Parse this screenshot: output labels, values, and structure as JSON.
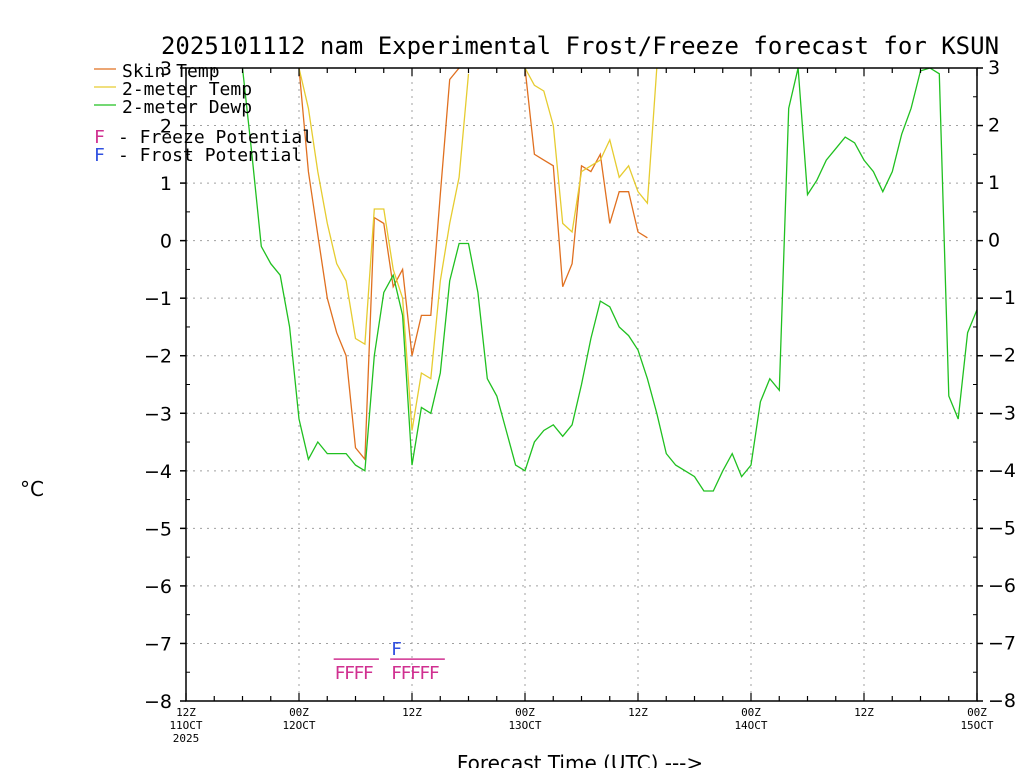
{
  "chart_data": {
    "type": "line",
    "title": "2025101112 nam Experimental Frost/Freeze forecast for KSUN",
    "xlabel": "Forecast Time (UTC) --->",
    "ylabel": "°C",
    "ylim": [
      -8,
      3
    ],
    "xlim": [
      0,
      84
    ],
    "y_ticks": [
      3,
      2,
      1,
      0,
      -1,
      -2,
      -3,
      -4,
      -5,
      -6,
      -7,
      -8
    ],
    "x_ticks": [
      {
        "x": 0,
        "lines": [
          "12Z",
          "11OCT",
          "2025"
        ]
      },
      {
        "x": 12,
        "lines": [
          "00Z",
          "12OCT"
        ]
      },
      {
        "x": 24,
        "lines": [
          "12Z"
        ]
      },
      {
        "x": 36,
        "lines": [
          "00Z",
          "13OCT"
        ]
      },
      {
        "x": 48,
        "lines": [
          "12Z"
        ]
      },
      {
        "x": 60,
        "lines": [
          "00Z",
          "14OCT"
        ]
      },
      {
        "x": 72,
        "lines": [
          "12Z"
        ]
      },
      {
        "x": 84,
        "lines": [
          "00Z",
          "15OCT"
        ]
      }
    ],
    "grid": true,
    "legend_position": "top-left",
    "series": [
      {
        "name": "Skin Temp",
        "color": "#e07020",
        "x": [
          12,
          13,
          14,
          15,
          16,
          17,
          18,
          19,
          20,
          21,
          22,
          23,
          24,
          25,
          26,
          27,
          28,
          29,
          36,
          37,
          38,
          39,
          40,
          41,
          42,
          43,
          44,
          45,
          46,
          47,
          48,
          49
        ],
        "y": [
          3.0,
          1.2,
          0.1,
          -1.0,
          -1.6,
          -2.0,
          -3.6,
          -3.8,
          0.4,
          0.3,
          -0.8,
          -0.5,
          -2.0,
          -1.3,
          -1.3,
          0.8,
          2.8,
          3.0,
          3.0,
          1.5,
          1.4,
          1.3,
          -0.8,
          -0.4,
          1.3,
          1.2,
          1.5,
          0.3,
          0.85,
          0.85,
          0.15,
          0.05
        ]
      },
      {
        "name": "2-meter Temp",
        "color": "#e6cc30",
        "x": [
          12,
          13,
          14,
          15,
          16,
          17,
          18,
          19,
          20,
          21,
          22,
          23,
          24,
          25,
          26,
          27,
          28,
          29,
          30,
          36,
          37,
          38,
          39,
          40,
          41,
          42,
          43,
          44,
          45,
          46,
          47,
          48,
          49,
          50
        ],
        "y": [
          3.0,
          2.3,
          1.2,
          0.3,
          -0.4,
          -0.7,
          -1.7,
          -1.8,
          0.55,
          0.55,
          -0.5,
          -1.0,
          -3.3,
          -2.3,
          -2.4,
          -0.7,
          0.3,
          1.1,
          2.9,
          3.0,
          2.7,
          2.6,
          2.0,
          0.3,
          0.15,
          1.2,
          1.3,
          1.4,
          1.75,
          1.1,
          1.3,
          0.85,
          0.65,
          3.0
        ]
      },
      {
        "name": "2-meter Dewp",
        "color": "#20c020",
        "x": [
          6,
          7,
          8,
          9,
          10,
          11,
          12,
          13,
          14,
          15,
          16,
          17,
          18,
          19,
          20,
          21,
          22,
          23,
          24,
          25,
          26,
          27,
          28,
          29,
          30,
          31,
          32,
          33,
          34,
          35,
          36,
          37,
          38,
          39,
          40,
          41,
          42,
          43,
          44,
          45,
          46,
          47,
          48,
          49,
          50,
          51,
          52,
          53,
          54,
          55,
          56,
          57,
          58,
          59,
          60,
          61,
          62,
          63,
          64,
          65,
          66,
          67,
          68,
          69,
          70,
          71,
          72,
          73,
          74,
          75,
          76,
          77,
          78,
          79,
          80,
          81,
          82,
          83,
          84
        ],
        "y": [
          3.0,
          1.5,
          -0.1,
          -0.4,
          -0.6,
          -1.5,
          -3.1,
          -3.8,
          -3.5,
          -3.7,
          -3.7,
          -3.7,
          -3.9,
          -4.0,
          -2.0,
          -0.9,
          -0.6,
          -1.3,
          -3.9,
          -2.9,
          -3.0,
          -2.3,
          -0.7,
          -0.05,
          -0.05,
          -0.9,
          -2.4,
          -2.7,
          -3.3,
          -3.9,
          -4.0,
          -3.5,
          -3.3,
          -3.2,
          -3.4,
          -3.2,
          -2.5,
          -1.7,
          -1.05,
          -1.15,
          -1.5,
          -1.65,
          -1.9,
          -2.4,
          -3.0,
          -3.7,
          -3.9,
          -4.0,
          -4.1,
          -4.35,
          -4.35,
          -4.0,
          -3.7,
          -4.1,
          -3.9,
          -2.8,
          -2.4,
          -2.6,
          2.3,
          3.0,
          0.8,
          1.05,
          1.4,
          1.6,
          1.8,
          1.7,
          1.4,
          1.2,
          0.85,
          1.2,
          1.85,
          2.3,
          2.95,
          3.0,
          2.9,
          -2.7,
          -3.1,
          -1.6,
          -1.2
        ]
      }
    ],
    "legend_potentials": [
      {
        "symbol": "F",
        "label": "- Freeze Potential",
        "color": "#d03090"
      },
      {
        "symbol": "F",
        "label": "- Frost Potential",
        "color": "#3050e0"
      }
    ],
    "freeze_markers": {
      "symbol": "F",
      "color": "#d03090",
      "groups": [
        [
          16,
          17,
          18,
          19
        ],
        [
          22,
          23,
          24,
          25,
          26
        ]
      ]
    },
    "frost_markers": {
      "symbol": "F",
      "color": "#3050e0",
      "x": [
        22
      ]
    }
  }
}
